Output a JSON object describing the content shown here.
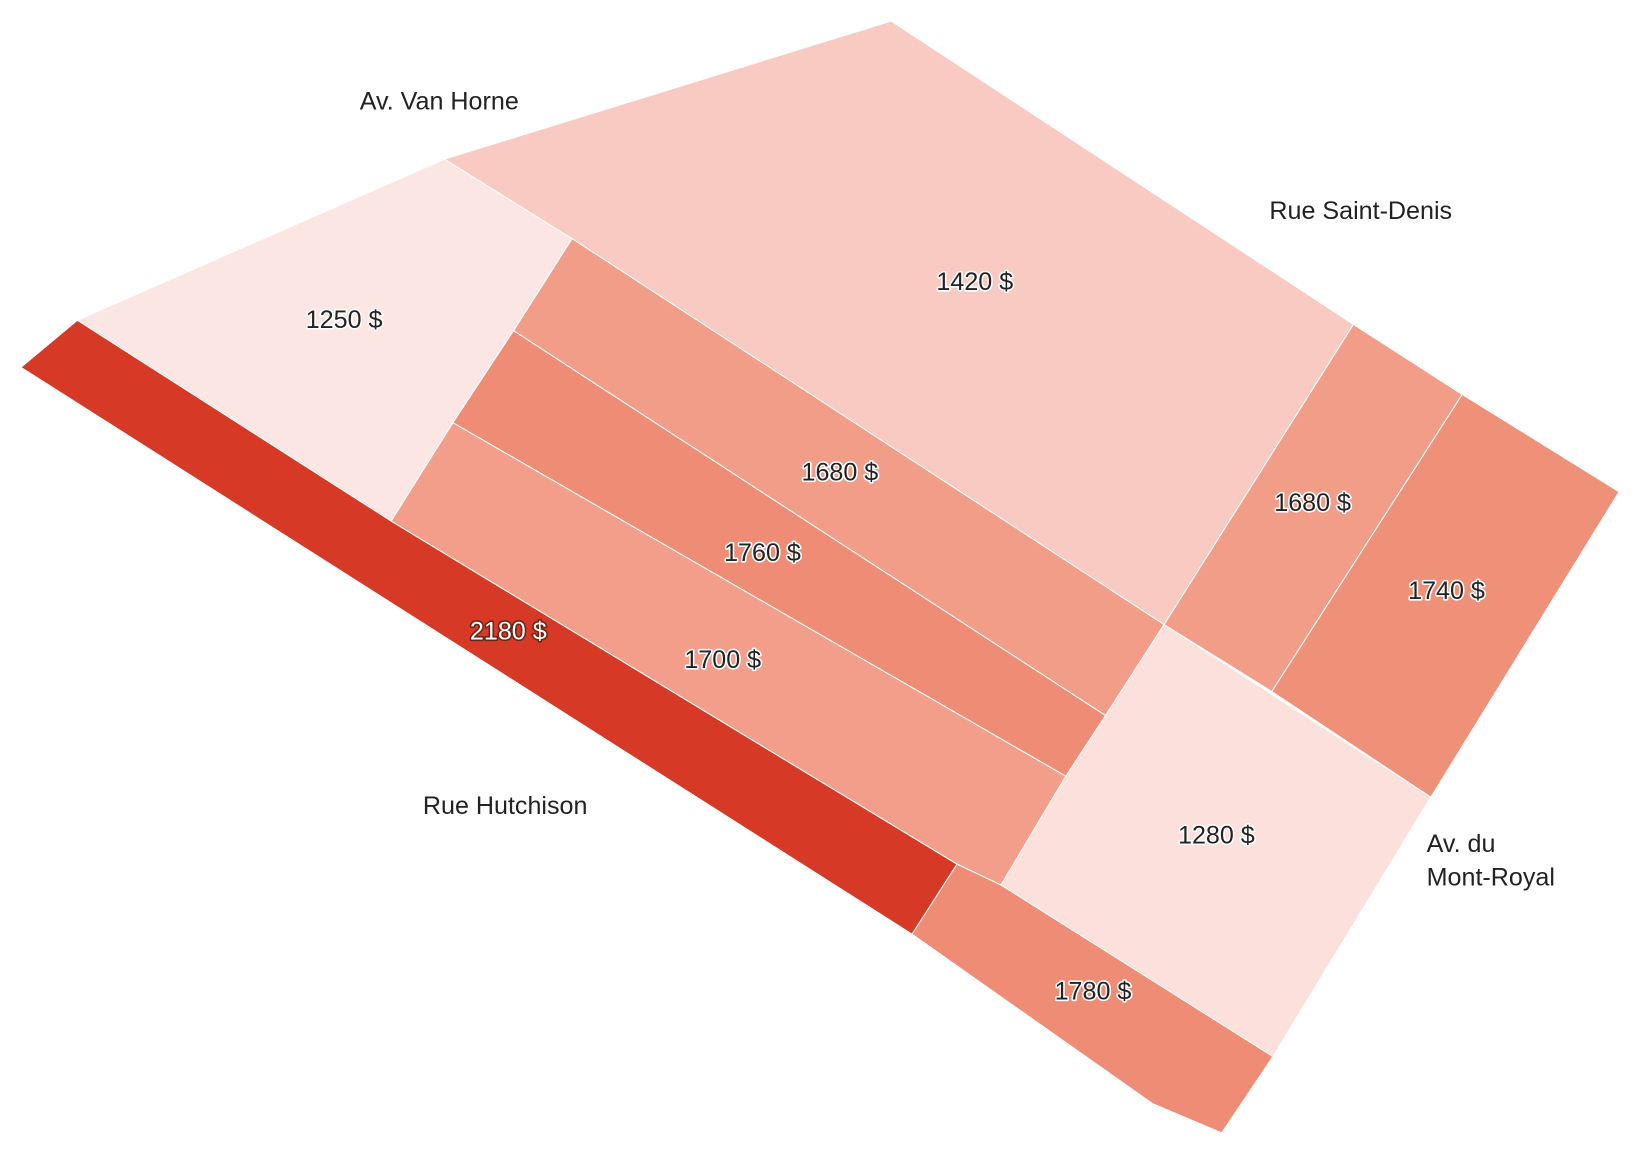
{
  "regions": [
    {
      "value": 2180,
      "label": "2180 $",
      "color": "#d63a26"
    },
    {
      "value": 1250,
      "label": "1250 $",
      "color": "#fbe6e4"
    },
    {
      "value": 1420,
      "label": "1420 $",
      "color": "#f9cac1"
    },
    {
      "value": 1680,
      "label": "1680 $",
      "color": "#f29d88"
    },
    {
      "value": 1760,
      "label": "1760 $",
      "color": "#ef8c76"
    },
    {
      "value": 1700,
      "label": "1700 $",
      "color": "#f29e8a"
    },
    {
      "value": 1680,
      "label": "1680 $",
      "color": "#f29d88"
    },
    {
      "value": 1740,
      "label": "1740 $",
      "color": "#ef9079"
    },
    {
      "value": 1280,
      "label": "1280 $",
      "color": "#fce0dc"
    },
    {
      "value": 1780,
      "label": "1780 $",
      "color": "#ef8c76"
    }
  ],
  "streets": [
    {
      "lines": [
        "Av. Van Horne"
      ]
    },
    {
      "lines": [
        "Rue Saint-Denis"
      ]
    },
    {
      "lines": [
        "Rue Hutchison"
      ]
    },
    {
      "lines": [
        "Av. du",
        "Mont-Royal"
      ]
    }
  ]
}
